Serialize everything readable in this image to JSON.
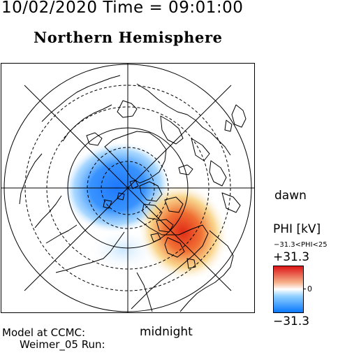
{
  "header": {
    "time_label": "10/02/2020 Time = 09:01:00"
  },
  "map": {
    "title": "Northern Hemisphere",
    "projection": "polar-stereographic",
    "grid": "on",
    "dawn_label": "dawn",
    "midnight_label": "midnight",
    "ocean_color": "#ffffff",
    "land_outline_color": "#000000",
    "pattern": {
      "negative_cell": "dusk-sector (left of pole)",
      "positive_cell": "dawn/post-midnight sector (lower right)"
    }
  },
  "colorbar": {
    "title": "PHI [kV]",
    "range_text": "−31.3<PHI<25",
    "max_label": "+31.3",
    "min_label": "−31.3",
    "zero_label": "0",
    "colors": [
      "#0a78ff",
      "#ffffff",
      "#dc1414"
    ]
  },
  "footer": {
    "line1": "Model at CCMC:",
    "line2": "Weimer_05 Run:"
  }
}
